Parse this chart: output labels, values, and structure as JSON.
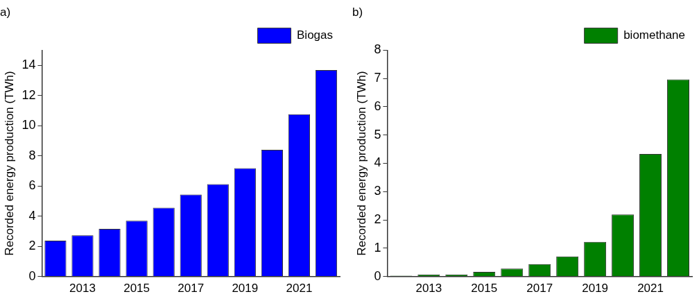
{
  "chart_data": [
    {
      "type": "bar",
      "title": "a)",
      "ylabel": "Recorded energy production (TWh)",
      "categories": [
        null,
        "2013",
        null,
        "2015",
        null,
        "2017",
        null,
        "2019",
        null,
        "2021",
        null
      ],
      "series": [
        {
          "name": "Biogas",
          "color": "#0000ff",
          "values": [
            2.37,
            2.73,
            3.15,
            3.69,
            4.56,
            5.43,
            6.12,
            7.18,
            8.4,
            10.75,
            13.69
          ]
        }
      ],
      "ylim": [
        0,
        15
      ],
      "yticks": [
        0,
        2,
        4,
        6,
        8,
        10,
        12,
        14
      ],
      "grid": false,
      "legend": "top right"
    },
    {
      "type": "bar",
      "title": "b)",
      "ylabel": "Recorded energy production (TWh)",
      "categories": [
        null,
        "2013",
        null,
        "2015",
        null,
        "2017",
        null,
        "2019",
        null,
        "2021",
        null
      ],
      "series": [
        {
          "name": "biomethane",
          "color": "#008000",
          "values": [
            0.03,
            0.07,
            0.07,
            0.16,
            0.28,
            0.44,
            0.71,
            1.22,
            2.19,
            4.33,
            6.97
          ]
        }
      ],
      "ylim": [
        0,
        8
      ],
      "yticks": [
        0,
        1,
        2,
        3,
        4,
        5,
        6,
        7,
        8
      ],
      "grid": false,
      "legend": "top right"
    }
  ]
}
